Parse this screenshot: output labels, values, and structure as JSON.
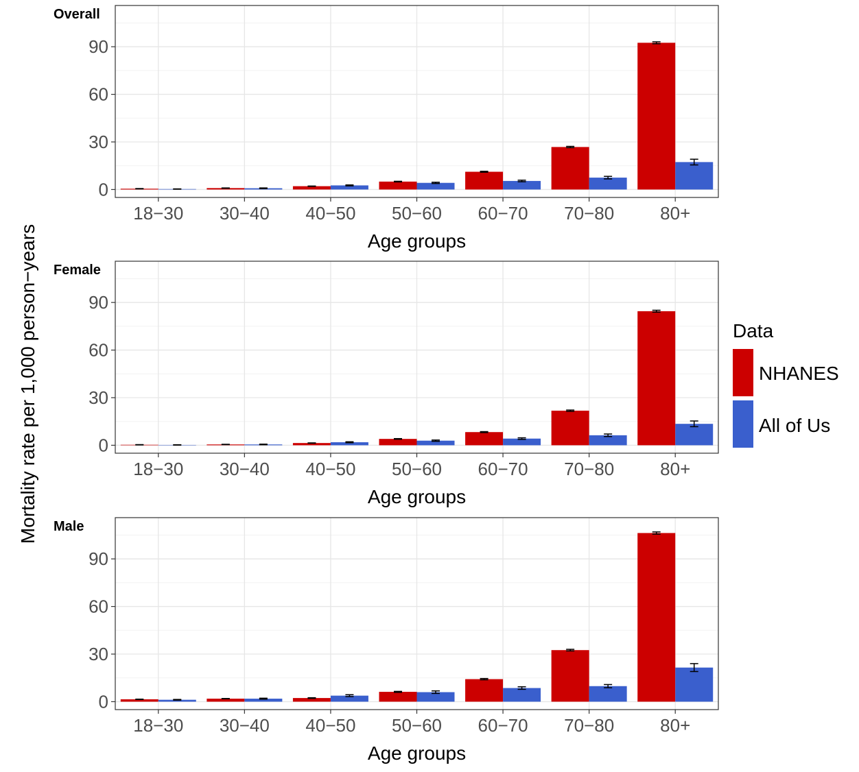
{
  "y_axis_label": "Mortality rate per 1,000 person−years",
  "legend": {
    "title": "Data",
    "items": [
      {
        "label": "NHANES",
        "color": "#cc0000"
      },
      {
        "label": "All of Us",
        "color": "#3a5fcd"
      }
    ]
  },
  "chart_data": [
    {
      "type": "bar",
      "title": "Overall",
      "xlabel": "Age groups",
      "ylabel": "Mortality rate per 1,000 person−years",
      "categories": [
        "18−30",
        "30−40",
        "40−50",
        "50−60",
        "60−70",
        "70−80",
        "80+"
      ],
      "yticks": [
        0,
        30,
        60,
        90
      ],
      "ylim": [
        -5,
        116
      ],
      "grid": true,
      "series": [
        {
          "name": "NHANES",
          "color": "#cc0000",
          "values": [
            0.5,
            0.9,
            2.1,
            5.0,
            11.2,
            26.8,
            92.5
          ],
          "errors": [
            0.1,
            0.1,
            0.1,
            0.2,
            0.3,
            0.4,
            0.6
          ]
        },
        {
          "name": "All of Us",
          "color": "#3a5fcd",
          "values": [
            0.3,
            0.8,
            2.6,
            4.2,
            5.4,
            7.5,
            17.3
          ],
          "errors": [
            0.1,
            0.2,
            0.3,
            0.4,
            0.5,
            0.8,
            1.8
          ]
        }
      ]
    },
    {
      "type": "bar",
      "title": "Female",
      "xlabel": "Age groups",
      "ylabel": "Mortality rate per 1,000 person−years",
      "categories": [
        "18−30",
        "30−40",
        "40−50",
        "50−60",
        "60−70",
        "70−80",
        "80+"
      ],
      "yticks": [
        0,
        30,
        60,
        90
      ],
      "ylim": [
        -5,
        116
      ],
      "grid": true,
      "series": [
        {
          "name": "NHANES",
          "color": "#cc0000",
          "values": [
            0.3,
            0.5,
            1.4,
            4.0,
            8.3,
            21.8,
            84.5
          ],
          "errors": [
            0.1,
            0.1,
            0.1,
            0.2,
            0.3,
            0.4,
            0.6
          ]
        },
        {
          "name": "All of Us",
          "color": "#3a5fcd",
          "values": [
            0.2,
            0.5,
            1.9,
            2.9,
            4.2,
            6.3,
            13.5
          ],
          "errors": [
            0.1,
            0.2,
            0.3,
            0.4,
            0.5,
            0.8,
            1.8
          ]
        }
      ]
    },
    {
      "type": "bar",
      "title": "Male",
      "xlabel": "Age groups",
      "ylabel": "Mortality rate per 1,000 person−years",
      "categories": [
        "18−30",
        "30−40",
        "40−50",
        "50−60",
        "60−70",
        "70−80",
        "80+"
      ],
      "yticks": [
        0,
        30,
        60,
        90
      ],
      "ylim": [
        -5,
        116
      ],
      "grid": true,
      "series": [
        {
          "name": "NHANES",
          "color": "#cc0000",
          "values": [
            1.5,
            1.9,
            2.3,
            6.2,
            14.2,
            32.5,
            106.3
          ],
          "errors": [
            0.1,
            0.1,
            0.2,
            0.3,
            0.4,
            0.5,
            0.7
          ]
        },
        {
          "name": "All of Us",
          "color": "#3a5fcd",
          "values": [
            1.2,
            1.9,
            3.8,
            6.0,
            8.6,
            9.8,
            21.5
          ],
          "errors": [
            0.2,
            0.3,
            0.6,
            0.8,
            0.8,
            1.0,
            2.5
          ]
        }
      ]
    }
  ]
}
